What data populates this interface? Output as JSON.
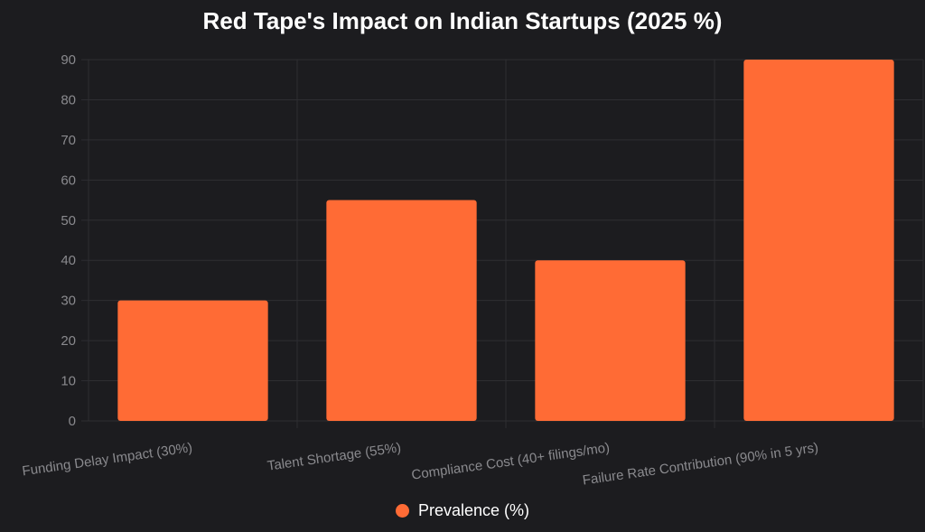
{
  "chart_data": {
    "type": "bar",
    "title": "Red Tape's Impact on Indian Startups (2025 %)",
    "categories": [
      "Funding Delay Impact (30%)",
      "Talent Shortage (55%)",
      "Compliance Cost (40+ filings/mo)",
      "Failure Rate Contribution (90% in 5 yrs)"
    ],
    "series": [
      {
        "name": "Prevalence (%)",
        "values": [
          30,
          55,
          40,
          90
        ],
        "color": "#ff6b35"
      }
    ],
    "ylim": [
      0,
      90
    ],
    "yticks": [
      0,
      10,
      20,
      30,
      40,
      50,
      60,
      70,
      80,
      90
    ],
    "grid": true,
    "legend": "bottom-center"
  }
}
